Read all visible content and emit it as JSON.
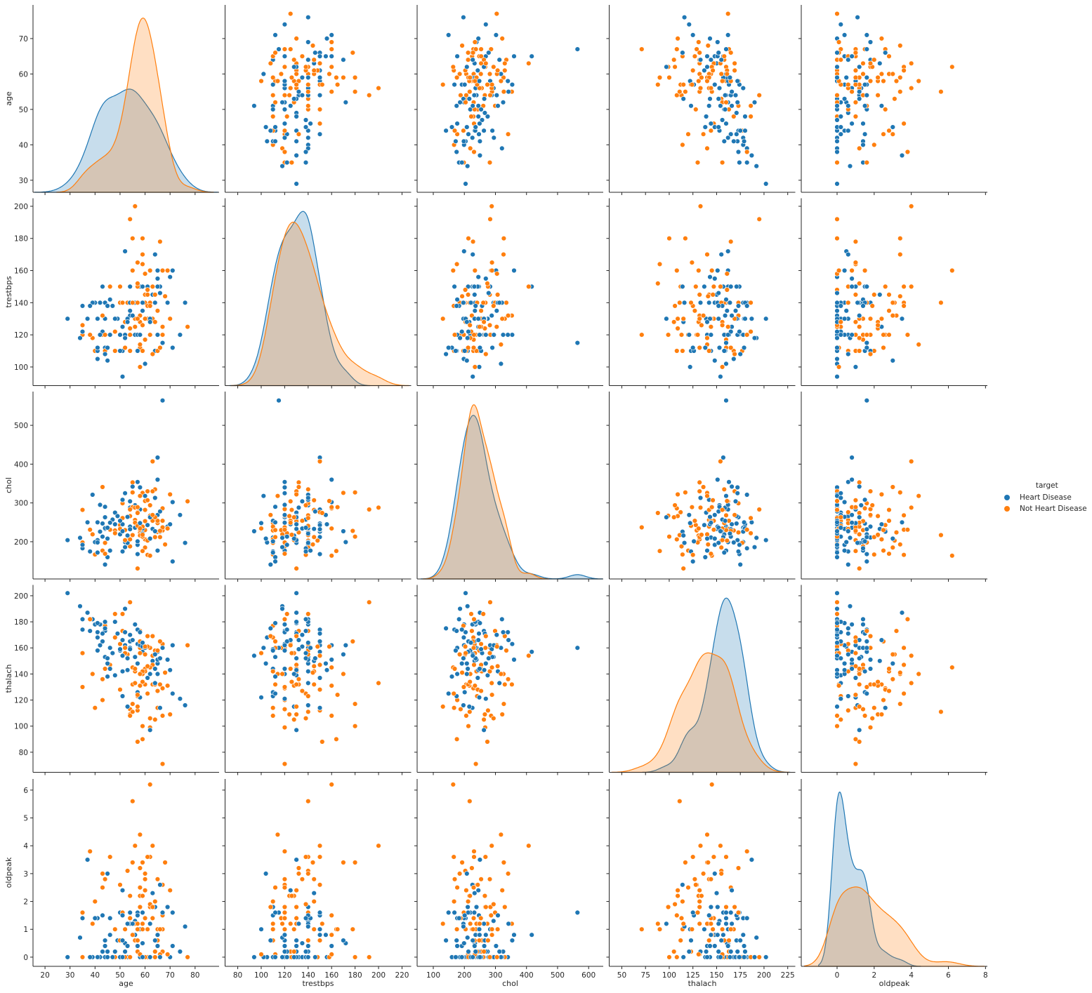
{
  "chart_data": {
    "type": "scatter",
    "subtype": "pairplot",
    "variables": [
      "age",
      "trestbps",
      "chol",
      "thalach",
      "oldpeak"
    ],
    "diagonal": "kde",
    "grid": false,
    "legend": {
      "title": "target",
      "placement": "right",
      "entries": [
        "Heart Disease",
        "Not Heart Disease"
      ]
    },
    "axes": {
      "age": {
        "label": "age",
        "range": [
          15.2,
          89.6
        ],
        "yrange": [
          26.6,
          79.5
        ],
        "xticks": [
          20,
          30,
          40,
          50,
          60,
          70,
          80
        ],
        "yticks": [
          30,
          40,
          50,
          60,
          70
        ]
      },
      "trestbps": {
        "label": "trestbps",
        "range": [
          69.2,
          227.8
        ],
        "yrange": [
          88.4,
          205
        ],
        "xticks": [
          80,
          100,
          120,
          140,
          160,
          180,
          200,
          220
        ],
        "yticks": [
          100,
          120,
          140,
          160,
          180,
          200
        ]
      },
      "chol": {
        "label": "chol",
        "range": [
          48,
          647
        ],
        "yrange": [
          104,
          587
        ],
        "xticks": [
          100,
          200,
          300,
          400,
          500,
          600
        ],
        "yticks": [
          200,
          300,
          400,
          500
        ]
      },
      "thalach": {
        "label": "thalach",
        "range": [
          36.7,
          233
        ],
        "yrange": [
          64.6,
          208.3
        ],
        "xticks": [
          50,
          75,
          100,
          125,
          150,
          175,
          200,
          225
        ],
        "yticks": [
          80,
          100,
          120,
          140,
          160,
          180,
          200
        ]
      },
      "oldpeak": {
        "label": "oldpeak",
        "range": [
          -1.93,
          8.1
        ],
        "yrange": [
          -0.33,
          6.4
        ],
        "xticks": [
          0,
          2,
          4,
          6,
          8
        ],
        "yticks": [
          0,
          1,
          2,
          3,
          4,
          5,
          6
        ]
      }
    },
    "series": [
      {
        "name": "Heart Disease",
        "color": "#1f77b4",
        "points": [
          [
            63,
            145,
            233,
            150,
            2.3
          ],
          [
            37,
            130,
            250,
            187,
            3.5
          ],
          [
            41,
            130,
            204,
            172,
            1.4
          ],
          [
            56,
            120,
            236,
            178,
            0.8
          ],
          [
            57,
            120,
            354,
            163,
            0.6
          ],
          [
            57,
            140,
            192,
            148,
            0.4
          ],
          [
            56,
            140,
            294,
            153,
            1.3
          ],
          [
            44,
            120,
            263,
            173,
            0
          ],
          [
            52,
            172,
            199,
            162,
            0.5
          ],
          [
            57,
            150,
            168,
            174,
            1.6
          ],
          [
            54,
            140,
            239,
            160,
            1.2
          ],
          [
            48,
            130,
            275,
            139,
            0.2
          ],
          [
            49,
            130,
            266,
            171,
            0.6
          ],
          [
            64,
            110,
            211,
            144,
            1.8
          ],
          [
            58,
            150,
            283,
            162,
            1
          ],
          [
            50,
            120,
            219,
            158,
            1.6
          ],
          [
            58,
            120,
            340,
            172,
            0
          ],
          [
            66,
            150,
            226,
            114,
            2.6
          ],
          [
            43,
            150,
            247,
            171,
            1.5
          ],
          [
            69,
            140,
            239,
            151,
            1.8
          ],
          [
            59,
            135,
            234,
            161,
            0.5
          ],
          [
            44,
            130,
            233,
            179,
            0.4
          ],
          [
            42,
            140,
            226,
            178,
            0
          ],
          [
            61,
            150,
            243,
            137,
            1
          ],
          [
            40,
            140,
            199,
            178,
            1.4
          ],
          [
            71,
            160,
            302,
            162,
            0.4
          ],
          [
            59,
            150,
            212,
            157,
            1.6
          ],
          [
            51,
            110,
            175,
            123,
            0.6
          ],
          [
            65,
            150,
            417,
            157,
            0.8
          ],
          [
            53,
            130,
            197,
            152,
            1.2
          ],
          [
            41,
            105,
            198,
            168,
            0
          ],
          [
            65,
            120,
            177,
            140,
            0.4
          ],
          [
            44,
            112,
            290,
            153,
            0
          ],
          [
            54,
            132,
            288,
            159,
            0
          ],
          [
            51,
            125,
            245,
            166,
            2.4
          ],
          [
            46,
            142,
            177,
            160,
            1.4
          ],
          [
            54,
            135,
            304,
            170,
            0
          ],
          [
            54,
            150,
            232,
            165,
            1.6
          ],
          [
            65,
            155,
            269,
            148,
            0.8
          ],
          [
            65,
            160,
            360,
            151,
            0.8
          ],
          [
            51,
            140,
            308,
            142,
            1.5
          ],
          [
            48,
            130,
            245,
            180,
            0.2
          ],
          [
            45,
            104,
            208,
            148,
            3
          ],
          [
            53,
            130,
            264,
            143,
            0.4
          ],
          [
            39,
            140,
            321,
            182,
            0
          ],
          [
            52,
            120,
            325,
            172,
            0.2
          ],
          [
            44,
            140,
            235,
            180,
            0
          ],
          [
            47,
            138,
            257,
            156,
            0
          ],
          [
            53,
            128,
            216,
            115,
            0
          ],
          [
            29,
            130,
            204,
            202,
            0
          ],
          [
            67,
            115,
            564,
            160,
            1.6
          ],
          [
            35,
            138,
            183,
            182,
            1.4
          ],
          [
            34,
            118,
            210,
            192,
            0.7
          ],
          [
            62,
            130,
            263,
            97,
            1.2
          ],
          [
            76,
            140,
            197,
            116,
            1.1
          ],
          [
            45,
            112,
            160,
            138,
            0
          ],
          [
            38,
            138,
            175,
            173,
            0
          ],
          [
            58,
            100,
            248,
            122,
            1
          ],
          [
            43,
            122,
            213,
            165,
            0.2
          ],
          [
            42,
            120,
            295,
            162,
            0
          ],
          [
            60,
            102,
            318,
            160,
            0
          ],
          [
            66,
            146,
            278,
            152,
            0
          ],
          [
            70,
            156,
            245,
            143,
            0
          ],
          [
            55,
            132,
            342,
            166,
            1.2
          ],
          [
            52,
            118,
            186,
            190,
            0
          ],
          [
            74,
            120,
            269,
            121,
            0.2
          ],
          [
            50,
            110,
            254,
            159,
            0
          ],
          [
            35,
            122,
            192,
            174,
            0
          ],
          [
            41,
            110,
            172,
            158,
            0
          ],
          [
            62,
            128,
            208,
            140,
            0
          ],
          [
            57,
            110,
            201,
            126,
            1.5
          ],
          [
            64,
            140,
            313,
            133,
            0.2
          ],
          [
            71,
            112,
            149,
            125,
            1.6
          ],
          [
            46,
            120,
            249,
            144,
            0.8
          ],
          [
            59,
            140,
            221,
            164,
            0
          ],
          [
            64,
            170,
            227,
            155,
            0.6
          ],
          [
            45,
            138,
            236,
            152,
            0.2
          ],
          [
            41,
            112,
            250,
            179,
            0
          ],
          [
            44,
            108,
            141,
            175,
            0.6
          ],
          [
            51,
            94,
            227,
            154,
            0
          ]
        ]
      },
      {
        "name": "Not Heart Disease",
        "color": "#ff7f0e",
        "points": [
          [
            67,
            160,
            286,
            108,
            1.5
          ],
          [
            67,
            120,
            229,
            129,
            2.6
          ],
          [
            62,
            140,
            268,
            160,
            3.6
          ],
          [
            63,
            130,
            254,
            147,
            1.4
          ],
          [
            53,
            140,
            203,
            155,
            3.1
          ],
          [
            56,
            130,
            256,
            142,
            0.6
          ],
          [
            48,
            110,
            229,
            168,
            1
          ],
          [
            58,
            120,
            284,
            160,
            1.8
          ],
          [
            58,
            132,
            224,
            173,
            3.2
          ],
          [
            60,
            130,
            206,
            132,
            2.4
          ],
          [
            40,
            110,
            167,
            114,
            2
          ],
          [
            60,
            117,
            230,
            160,
            1.4
          ],
          [
            64,
            140,
            335,
            158,
            0
          ],
          [
            43,
            120,
            177,
            120,
            2.5
          ],
          [
            57,
            150,
            276,
            112,
            0.6
          ],
          [
            55,
            132,
            353,
            132,
            1.2
          ],
          [
            65,
            150,
            225,
            114,
            1
          ],
          [
            61,
            130,
            330,
            169,
            0
          ],
          [
            58,
            112,
            230,
            165,
            2.5
          ],
          [
            50,
            150,
            243,
            128,
            2.6
          ],
          [
            60,
            130,
            253,
            144,
            1.4
          ],
          [
            54,
            124,
            266,
            109,
            2.2
          ],
          [
            50,
            140,
            233,
            163,
            0.6
          ],
          [
            51,
            140,
            299,
            173,
            1.6
          ],
          [
            58,
            128,
            216,
            131,
            2.2
          ],
          [
            54,
            120,
            188,
            113,
            1.4
          ],
          [
            60,
            145,
            282,
            142,
            2.8
          ],
          [
            60,
            140,
            185,
            155,
            3
          ],
          [
            59,
            170,
            326,
            140,
            3.4
          ],
          [
            46,
            150,
            231,
            147,
            3.6
          ],
          [
            67,
            125,
            254,
            163,
            0.2
          ],
          [
            62,
            120,
            267,
            99,
            1.8
          ],
          [
            65,
            110,
            248,
            158,
            0.6
          ],
          [
            44,
            110,
            197,
            177,
            0
          ],
          [
            63,
            150,
            407,
            154,
            4
          ],
          [
            54,
            110,
            206,
            108,
            0
          ],
          [
            66,
            112,
            212,
            132,
            0.1
          ],
          [
            52,
            128,
            204,
            156,
            1
          ],
          [
            48,
            122,
            222,
            186,
            0
          ],
          [
            55,
            160,
            289,
            145,
            0.8
          ],
          [
            59,
            110,
            239,
            142,
            1.2
          ],
          [
            57,
            152,
            274,
            88,
            1.2
          ],
          [
            61,
            148,
            203,
            161,
            0
          ],
          [
            39,
            118,
            219,
            140,
            1.2
          ],
          [
            61,
            138,
            166,
            125,
            3.6
          ],
          [
            56,
            200,
            288,
            133,
            4
          ],
          [
            55,
            140,
            217,
            111,
            5.6
          ],
          [
            62,
            160,
            164,
            145,
            6.2
          ],
          [
            77,
            125,
            304,
            162,
            0
          ],
          [
            67,
            120,
            237,
            71,
            1
          ],
          [
            54,
            192,
            283,
            195,
            0
          ],
          [
            35,
            120,
            198,
            130,
            1.6
          ],
          [
            63,
            130,
            330,
            132,
            1.8
          ],
          [
            58,
            114,
            318,
            140,
            4.4
          ],
          [
            56,
            125,
            249,
            144,
            1.2
          ],
          [
            65,
            135,
            254,
            127,
            2.8
          ],
          [
            57,
            140,
            241,
            123,
            0.2
          ],
          [
            68,
            144,
            193,
            141,
            3.4
          ],
          [
            57,
            130,
            131,
            115,
            1.2
          ],
          [
            59,
            164,
            176,
            90,
            1
          ],
          [
            51,
            140,
            261,
            186,
            0
          ],
          [
            64,
            145,
            212,
            132,
            2
          ],
          [
            70,
            130,
            322,
            109,
            2.4
          ],
          [
            43,
            132,
            341,
            136,
            3
          ],
          [
            38,
            120,
            231,
            182,
            3.8
          ],
          [
            52,
            112,
            230,
            160,
            0
          ],
          [
            60,
            158,
            305,
            161,
            0
          ],
          [
            66,
            178,
            228,
            165,
            1
          ],
          [
            35,
            126,
            282,
            156,
            0
          ],
          [
            44,
            120,
            169,
            144,
            2.8
          ],
          [
            59,
            180,
            213,
            100,
            0
          ],
          [
            61,
            145,
            307,
            146,
            1
          ],
          [
            58,
            100,
            234,
            156,
            0.1
          ],
          [
            62,
            138,
            294,
            106,
            1.9
          ],
          [
            69,
            160,
            234,
            131,
            0.1
          ],
          [
            57,
            165,
            289,
            124,
            1
          ],
          [
            55,
            180,
            327,
            117,
            3.4
          ],
          [
            64,
            128,
            263,
            105,
            0.2
          ],
          [
            63,
            108,
            269,
            169,
            1.8
          ],
          [
            59,
            126,
            218,
            134,
            2.2
          ]
        ]
      }
    ]
  }
}
